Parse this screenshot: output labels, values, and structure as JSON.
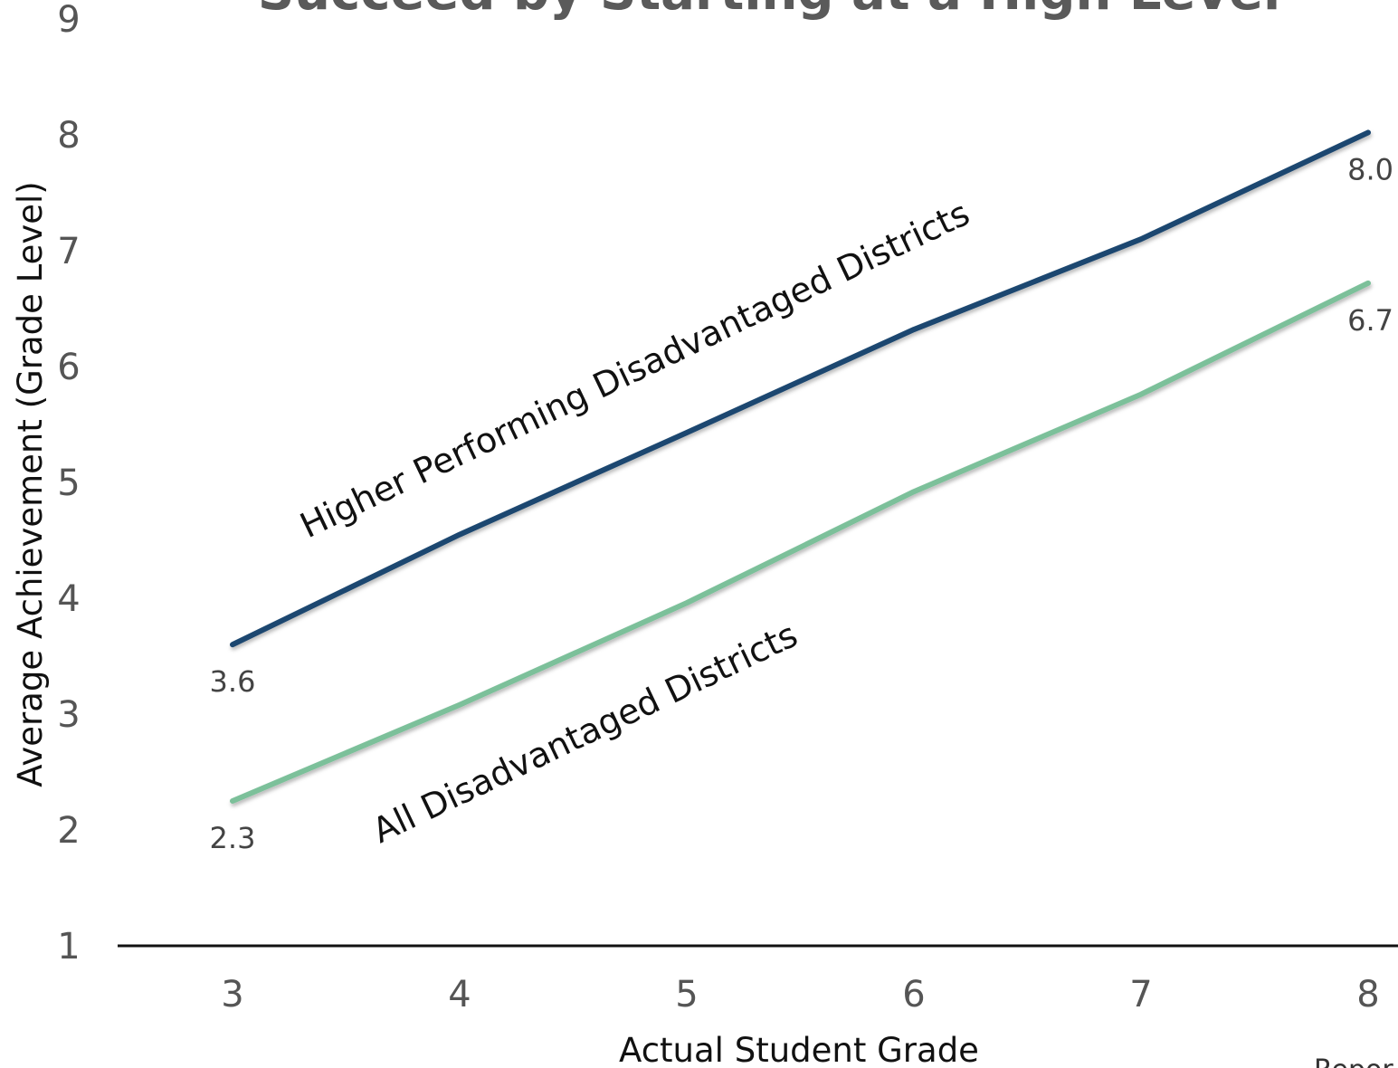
{
  "title": "Succeed by Starting at a High Level",
  "corner_text": "Repor",
  "chart_data": {
    "type": "line",
    "x": [
      3,
      4,
      5,
      6,
      7,
      8
    ],
    "xlabel": "Actual Student Grade",
    "ylabel": "Average Achievement (Grade Level)",
    "ylim": [
      1,
      9
    ],
    "yticks": [
      "1",
      "2",
      "3",
      "4",
      "5",
      "6",
      "7",
      "8",
      "9"
    ],
    "xticks": [
      "3",
      "4",
      "5",
      "6",
      "7",
      "8"
    ],
    "grid": false,
    "series": [
      {
        "name": "Higher Performing Disadvantaged Districts",
        "color": "#1b4770",
        "values": [
          3.6,
          4.55,
          5.43,
          6.32,
          7.1,
          8.02
        ],
        "labels": [
          "3.6",
          "8.0"
        ]
      },
      {
        "name": "All Disadvantaged Districts",
        "color": "#7cc09a",
        "values": [
          2.25,
          3.08,
          3.96,
          4.92,
          5.76,
          6.72
        ],
        "labels": [
          "2.3",
          "6.7"
        ]
      }
    ]
  }
}
